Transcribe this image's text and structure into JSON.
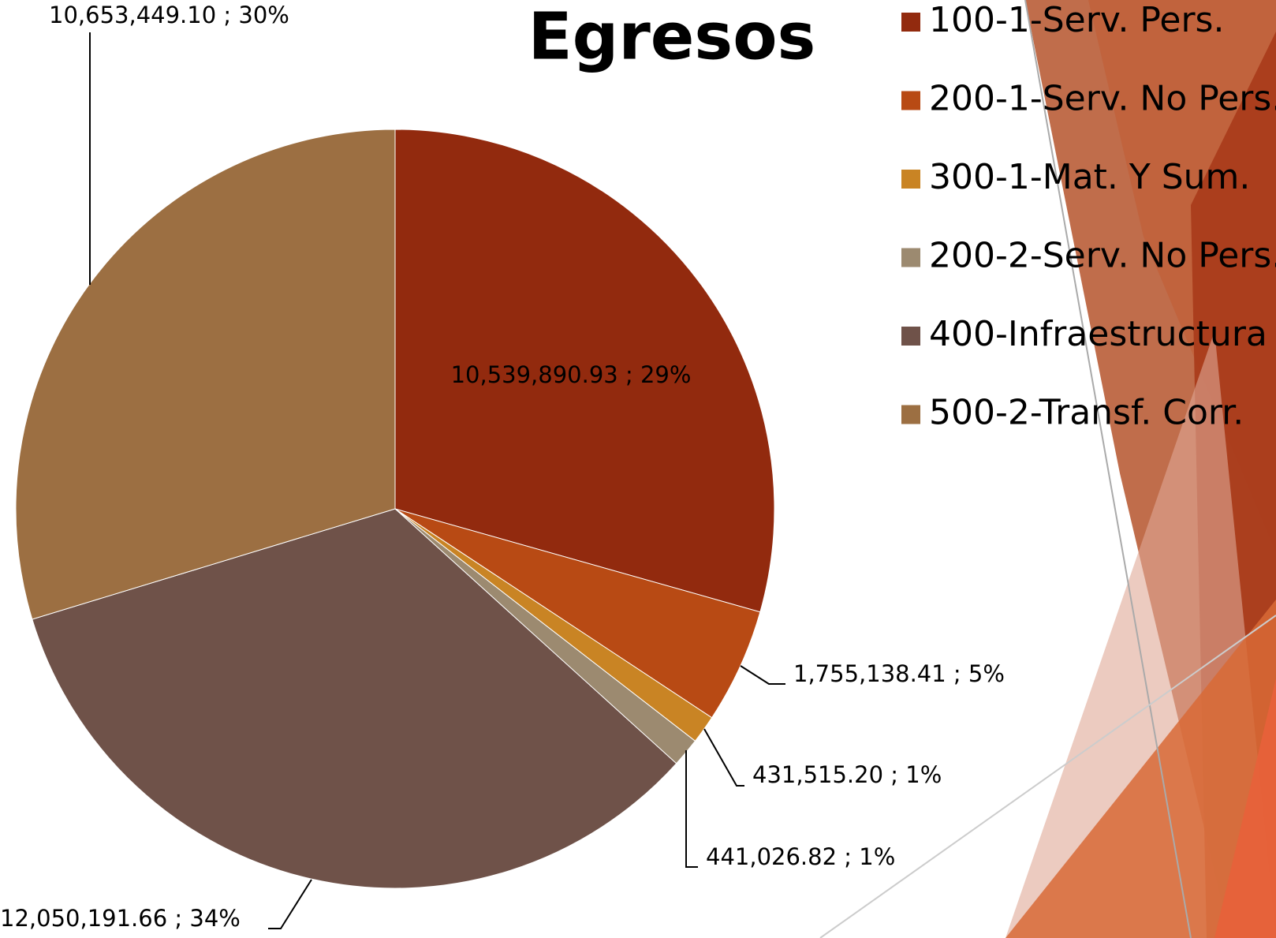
{
  "chart_data": {
    "type": "pie",
    "title": "Egresos",
    "categories": [
      "100-1-Serv. Pers.",
      "200-1-Serv. No Pers.",
      "300-1-Mat. Y Sum.",
      "200-2-Serv. No Pers.",
      "400-Infraestructura",
      "500-2-Transf. Corr."
    ],
    "values": [
      10539890.93,
      1755138.41,
      431515.2,
      441026.82,
      12050191.66,
      10653449.1
    ],
    "value_labels": [
      "10,539,890.93 ; 29%",
      "1,755,138.41 ; 5%",
      "431,515.20 ; 1%",
      "441,026.82 ; 1%",
      "12,050,191.66 ; 34%",
      "10,653,449.10 ; 30%"
    ],
    "colors": [
      "#922a0e",
      "#b84a14",
      "#c98424",
      "#9c8a70",
      "#6f5249",
      "#9c6f42"
    ],
    "legend": "right"
  }
}
